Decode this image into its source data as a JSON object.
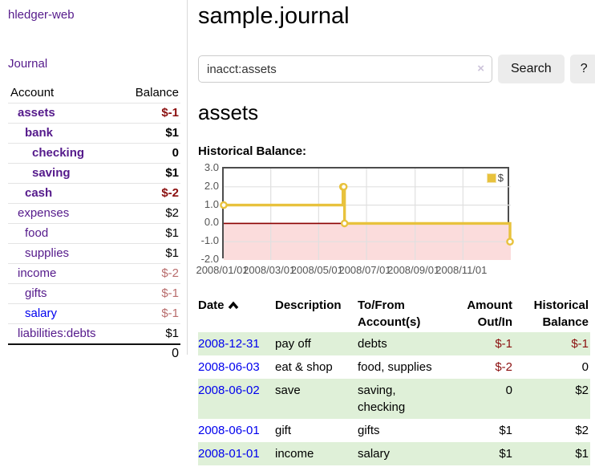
{
  "colors": {
    "link_purple": "#551a8b",
    "link_blue": "#0000ee",
    "negative_strong": "#8b0f0f",
    "negative_muted": "#b86c6c",
    "row_shade_green": "#dff0d8",
    "series_yellow": "#e8c23d"
  },
  "sidebar": {
    "app_title": "hledger-web",
    "nav": {
      "journal_label": "Journal"
    },
    "accounts_table": {
      "headers": {
        "account": "Account",
        "balance": "Balance"
      },
      "rows": [
        {
          "name": "assets",
          "depth": 1,
          "bold": true,
          "balance": "$-1",
          "neg": "strong"
        },
        {
          "name": "bank",
          "depth": 2,
          "bold": true,
          "balance": "$1",
          "neg": "none"
        },
        {
          "name": "checking",
          "depth": 3,
          "bold": true,
          "balance": "0",
          "neg": "none"
        },
        {
          "name": "saving",
          "depth": 3,
          "bold": true,
          "balance": "$1",
          "neg": "none"
        },
        {
          "name": "cash",
          "depth": 2,
          "bold": true,
          "balance": "$-2",
          "neg": "strong"
        },
        {
          "name": "expenses",
          "depth": 1,
          "bold": false,
          "balance": "$2",
          "neg": "none"
        },
        {
          "name": "food",
          "depth": 2,
          "bold": false,
          "balance": "$1",
          "neg": "none"
        },
        {
          "name": "supplies",
          "depth": 2,
          "bold": false,
          "balance": "$1",
          "neg": "none"
        },
        {
          "name": "income",
          "depth": 1,
          "bold": false,
          "balance": "$-2",
          "neg": "muted"
        },
        {
          "name": "gifts",
          "depth": 2,
          "bold": false,
          "balance": "$-1",
          "neg": "muted"
        },
        {
          "name": "salary",
          "depth": 2,
          "bold": false,
          "balance": "$-1",
          "neg": "muted",
          "link_color": "blue"
        },
        {
          "name": "liabilities:debts",
          "depth": 1,
          "bold": false,
          "balance": "$1",
          "neg": "none"
        }
      ],
      "total": "0"
    }
  },
  "header": {
    "title": "sample.journal"
  },
  "search": {
    "query": "inacct:assets",
    "clear_icon": "×",
    "search_label": "Search",
    "help_label": "?"
  },
  "account_page": {
    "heading": "assets",
    "chart_label": "Historical Balance:"
  },
  "chart_data": {
    "type": "line",
    "style": "step",
    "title": "Historical Balance:",
    "legend_position": "top-right",
    "series": [
      {
        "name": "$",
        "color": "#e8c23d",
        "points": [
          [
            "2008-01-01",
            1
          ],
          [
            "2008-06-01",
            2
          ],
          [
            "2008-06-02",
            2
          ],
          [
            "2008-06-03",
            0
          ],
          [
            "2008-12-31",
            -1
          ]
        ]
      }
    ],
    "xlim": [
      "2008-01-01",
      "2009-01-01"
    ],
    "ylim": [
      -2,
      3
    ],
    "x_ticks": [
      {
        "date": "2008-01-01",
        "label": "2008/01/01"
      },
      {
        "date": "2008-03-01",
        "label": "2008/03/01"
      },
      {
        "date": "2008-05-01",
        "label": "2008/05/01"
      },
      {
        "date": "2008-07-01",
        "label": "2008/07/01"
      },
      {
        "date": "2008-09-01",
        "label": "2008/09/01"
      },
      {
        "date": "2008-11-01",
        "label": "2008/11/01"
      }
    ],
    "y_ticks": [
      {
        "v": 3,
        "label": "3.0"
      },
      {
        "v": 2,
        "label": "2.0"
      },
      {
        "v": 1,
        "label": "1.0"
      },
      {
        "v": 0,
        "label": "0.0"
      },
      {
        "v": -1,
        "label": "-1.0"
      },
      {
        "v": -2,
        "label": "-2.0"
      }
    ],
    "grid": true,
    "grid_color": "#e0e0e0",
    "border_color": "#4d4d4d",
    "negative_region_color": "#fbdcdc",
    "zero_line_color": "#8b0000"
  },
  "transactions": {
    "headers": {
      "date": "Date",
      "description": "Description",
      "accounts": "To/From Account(s)",
      "amount": "Amount Out/In",
      "balance": "Historical Balance"
    },
    "sort": {
      "column": "date",
      "direction": "ascending"
    },
    "rows": [
      {
        "date": "2008-12-31",
        "description": "pay off",
        "accounts": "debts",
        "amount": "$-1",
        "amount_neg": true,
        "balance": "$-1",
        "balance_neg": true,
        "shaded": true
      },
      {
        "date": "2008-06-03",
        "description": "eat & shop",
        "accounts": "food, supplies",
        "amount": "$-2",
        "amount_neg": true,
        "balance": "0",
        "balance_neg": false,
        "shaded": false
      },
      {
        "date": "2008-06-02",
        "description": "save",
        "accounts": "saving, checking",
        "amount": "0",
        "amount_neg": false,
        "balance": "$2",
        "balance_neg": false,
        "shaded": true
      },
      {
        "date": "2008-06-01",
        "description": "gift",
        "accounts": "gifts",
        "amount": "$1",
        "amount_neg": false,
        "balance": "$2",
        "balance_neg": false,
        "shaded": false
      },
      {
        "date": "2008-01-01",
        "description": "income",
        "accounts": "salary",
        "amount": "$1",
        "amount_neg": false,
        "balance": "$1",
        "balance_neg": false,
        "shaded": true
      }
    ]
  }
}
